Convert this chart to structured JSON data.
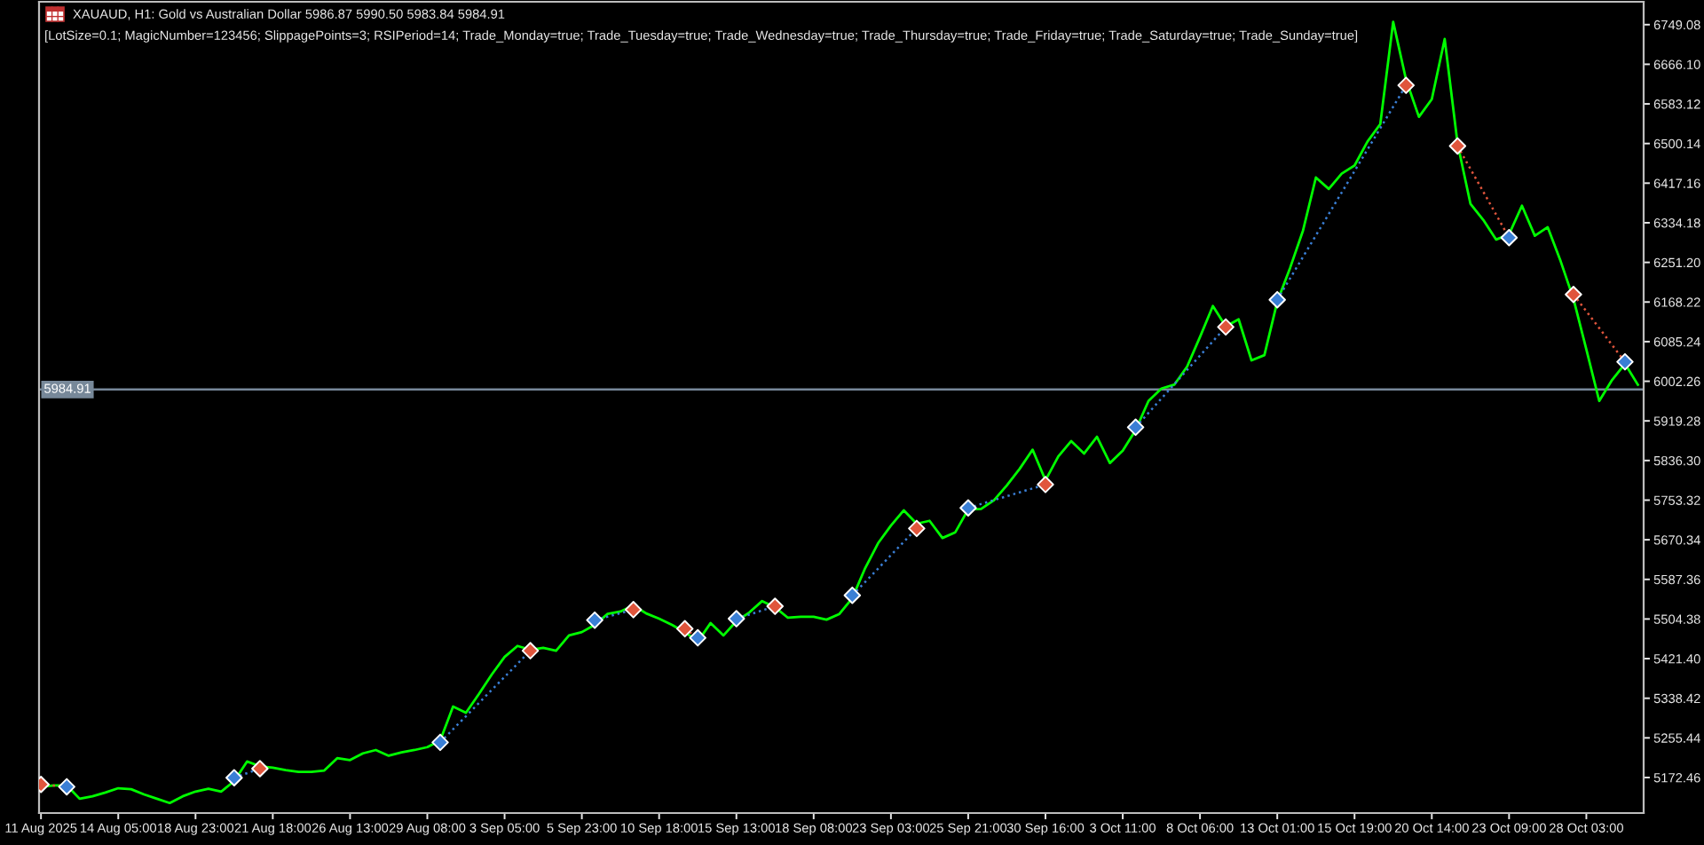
{
  "chart_data": {
    "type": "line",
    "title": "XAUAUD, H1: Gold vs Australian Dollar 5986.87 5990.50 5983.84 5984.91",
    "subtitle": "[LotSize=0.1; MagicNumber=123456; SlippagePoints=3; RSIPeriod=14; Trade_Monday=true; Trade_Tuesday=true; Trade_Wednesday=true; Trade_Thursday=true; Trade_Friday=true; Trade_Saturday=true; Trade_Sunday=true]",
    "categories": [
      "11 Aug 2025",
      null,
      null,
      null,
      null,
      null,
      "14 Aug 05:00",
      null,
      null,
      null,
      null,
      null,
      "18 Aug 23:00",
      null,
      null,
      null,
      null,
      null,
      "21 Aug 18:00",
      null,
      null,
      null,
      null,
      null,
      "26 Aug 13:00",
      null,
      null,
      null,
      null,
      null,
      "29 Aug 08:00",
      null,
      null,
      null,
      null,
      null,
      "3 Sep 05:00",
      null,
      null,
      null,
      null,
      null,
      "5 Sep 23:00",
      null,
      null,
      null,
      null,
      null,
      "10 Sep 18:00",
      null,
      null,
      null,
      null,
      null,
      "15 Sep 13:00",
      null,
      null,
      null,
      null,
      null,
      "18 Sep 08:00",
      null,
      null,
      null,
      null,
      null,
      "23 Sep 03:00",
      null,
      null,
      null,
      null,
      null,
      "25 Sep 21:00",
      null,
      null,
      null,
      null,
      null,
      "30 Sep 16:00",
      null,
      null,
      null,
      null,
      null,
      "3 Oct 11:00",
      null,
      null,
      null,
      null,
      null,
      "8 Oct 06:00",
      null,
      null,
      null,
      null,
      null,
      "13 Oct 01:00",
      null,
      null,
      null,
      null,
      null,
      "15 Oct 19:00",
      null,
      null,
      null,
      null,
      null,
      "20 Oct 14:00",
      null,
      null,
      null,
      null,
      null,
      "23 Oct 09:00",
      null,
      null,
      null,
      null,
      null,
      "28 Oct 03:00",
      null,
      null,
      null,
      null
    ],
    "series": [
      {
        "color": "#00ff00",
        "values": [
          5153,
          5156,
          5156,
          5128,
          5133,
          5141,
          5150,
          5148,
          5137,
          5128,
          5119,
          5133,
          5143,
          5149,
          5143,
          5165,
          5206,
          5196,
          5193,
          5188,
          5184,
          5184,
          5187,
          5213,
          5209,
          5223,
          5230,
          5218,
          5225,
          5230,
          5236,
          5250,
          5321,
          5308,
          5347,
          5388,
          5425,
          5448,
          5440,
          5444,
          5438,
          5470,
          5477,
          5492,
          5515,
          5520,
          5533,
          5516,
          5505,
          5492,
          5477,
          5457,
          5496,
          5470,
          5500,
          5518,
          5542,
          5529,
          5507,
          5509,
          5509,
          5503,
          5515,
          5548,
          5611,
          5663,
          5700,
          5732,
          5704,
          5710,
          5674,
          5686,
          5734,
          5735,
          5753,
          5784,
          5819,
          5859,
          5795,
          5845,
          5877,
          5851,
          5886,
          5831,
          5857,
          5900,
          5961,
          5987,
          5995,
          6033,
          6095,
          6160,
          6117,
          6132,
          6046,
          6057,
          6169,
          6240,
          6318,
          6429,
          6405,
          6437,
          6454,
          6504,
          6541,
          6755,
          6634,
          6556,
          6593,
          6719,
          6500,
          6374,
          6340,
          6299,
          6310,
          6370,
          6307,
          6325,
          6254,
          6175,
          6069,
          5961,
          6005,
          6039,
          5995
        ]
      },
      {
        "type": "line",
        "line_style": "dotted",
        "color": "#3a7fd5",
        "values": [
          null,
          null,
          null,
          null,
          null,
          null,
          null,
          null,
          null,
          null,
          null,
          null,
          null,
          null,
          null,
          5172,
          null,
          5191,
          null,
          null,
          null,
          null,
          null,
          null,
          null,
          null,
          null,
          null,
          null,
          null,
          null,
          5246,
          null,
          null,
          null,
          null,
          null,
          null,
          5438,
          null,
          null,
          null,
          null,
          5502,
          null,
          null,
          5524,
          null,
          null,
          null,
          null,
          null,
          null,
          null,
          5505,
          null,
          null,
          5531,
          null,
          null,
          null,
          null,
          null,
          5554,
          null,
          null,
          null,
          null,
          5694,
          null,
          null,
          null,
          5737,
          null,
          null,
          null,
          null,
          null,
          5786,
          null,
          null,
          null,
          null,
          null,
          null,
          5906,
          null,
          null,
          null,
          null,
          null,
          null,
          6116,
          null,
          null,
          null,
          6173,
          null,
          null,
          null,
          null,
          null,
          null,
          null,
          null,
          null,
          6622,
          null,
          null,
          null,
          null,
          null,
          null,
          null,
          null,
          null,
          null,
          null,
          null,
          null,
          null,
          null,
          null,
          null,
          null
        ]
      },
      {
        "type": "line",
        "line_style": "dotted",
        "color": "#e0553c",
        "values": [
          5158,
          null,
          5153,
          null,
          null,
          null,
          null,
          null,
          null,
          null,
          null,
          null,
          null,
          null,
          null,
          null,
          null,
          null,
          null,
          null,
          null,
          null,
          null,
          null,
          null,
          null,
          null,
          null,
          null,
          null,
          null,
          null,
          null,
          null,
          null,
          null,
          null,
          null,
          null,
          null,
          null,
          null,
          null,
          null,
          null,
          null,
          null,
          null,
          null,
          null,
          5484,
          5465,
          null,
          null,
          null,
          null,
          null,
          null,
          null,
          null,
          null,
          null,
          null,
          null,
          null,
          null,
          null,
          null,
          null,
          null,
          null,
          null,
          null,
          null,
          null,
          null,
          null,
          null,
          null,
          null,
          null,
          null,
          null,
          null,
          null,
          null,
          null,
          null,
          null,
          null,
          null,
          null,
          null,
          null,
          null,
          null,
          null,
          null,
          null,
          null,
          null,
          null,
          null,
          null,
          null,
          null,
          null,
          null,
          null,
          null,
          6495,
          null,
          null,
          null,
          6303,
          null,
          null,
          null,
          null,
          6184,
          null,
          null,
          null,
          6043,
          null
        ]
      },
      {
        "type": "scatter",
        "marker": "diamond",
        "color": "#3a7fd5",
        "values": [
          null,
          null,
          5153,
          null,
          null,
          null,
          null,
          null,
          null,
          null,
          null,
          null,
          null,
          null,
          null,
          5172,
          null,
          null,
          null,
          null,
          null,
          null,
          null,
          null,
          null,
          null,
          null,
          null,
          null,
          null,
          null,
          5246,
          null,
          null,
          null,
          null,
          null,
          null,
          null,
          null,
          null,
          null,
          null,
          5502,
          null,
          null,
          null,
          null,
          null,
          null,
          null,
          5465,
          null,
          null,
          5505,
          null,
          null,
          null,
          null,
          null,
          null,
          null,
          null,
          5554,
          null,
          null,
          null,
          null,
          null,
          null,
          null,
          null,
          5737,
          null,
          null,
          null,
          null,
          null,
          null,
          null,
          null,
          null,
          null,
          null,
          null,
          5906,
          null,
          null,
          null,
          null,
          null,
          null,
          null,
          null,
          null,
          null,
          6173,
          null,
          null,
          null,
          null,
          null,
          null,
          null,
          null,
          null,
          null,
          null,
          null,
          null,
          null,
          null,
          null,
          null,
          6303,
          null,
          null,
          null,
          null,
          null,
          null,
          null,
          null,
          6043,
          null
        ]
      },
      {
        "type": "scatter",
        "marker": "diamond",
        "color": "#e0553c",
        "values": [
          5158,
          null,
          null,
          null,
          null,
          null,
          null,
          null,
          null,
          null,
          null,
          null,
          null,
          null,
          null,
          null,
          null,
          5191,
          null,
          null,
          null,
          null,
          null,
          null,
          null,
          null,
          null,
          null,
          null,
          null,
          null,
          null,
          null,
          null,
          null,
          null,
          null,
          null,
          5438,
          null,
          null,
          null,
          null,
          null,
          null,
          null,
          5524,
          null,
          null,
          null,
          5484,
          null,
          null,
          null,
          null,
          null,
          null,
          5531,
          null,
          null,
          null,
          null,
          null,
          null,
          null,
          null,
          null,
          null,
          5694,
          null,
          null,
          null,
          null,
          null,
          null,
          null,
          null,
          null,
          5786,
          null,
          null,
          null,
          null,
          null,
          null,
          null,
          null,
          null,
          null,
          null,
          null,
          null,
          6116,
          null,
          null,
          null,
          null,
          null,
          null,
          null,
          null,
          null,
          null,
          null,
          null,
          null,
          6622,
          null,
          null,
          null,
          6495,
          null,
          null,
          null,
          null,
          null,
          null,
          null,
          null,
          6184,
          null,
          null,
          null,
          null,
          null
        ]
      }
    ],
    "ylim": [
      5098,
      6797
    ],
    "yticks": [
      5172.46,
      5255.44,
      5338.42,
      {
        "value": 5421.4,
        "label": "5421.40"
      },
      5504.38,
      5587.36,
      5670.34,
      5753.32,
      {
        "value": 5836.3,
        "label": "5836.30"
      },
      5919.28,
      6002.26,
      6085.24,
      6168.22,
      {
        "value": 6251.2,
        "label": "6251.20"
      },
      6334.18,
      6417.16,
      6500.14,
      6583.12,
      {
        "value": 6666.1,
        "label": "6666.10"
      },
      6749.08
    ],
    "ref_lines": [
      {
        "axis": "y",
        "value": 5984.91,
        "label": "5984.91",
        "color": "#778899"
      }
    ]
  }
}
